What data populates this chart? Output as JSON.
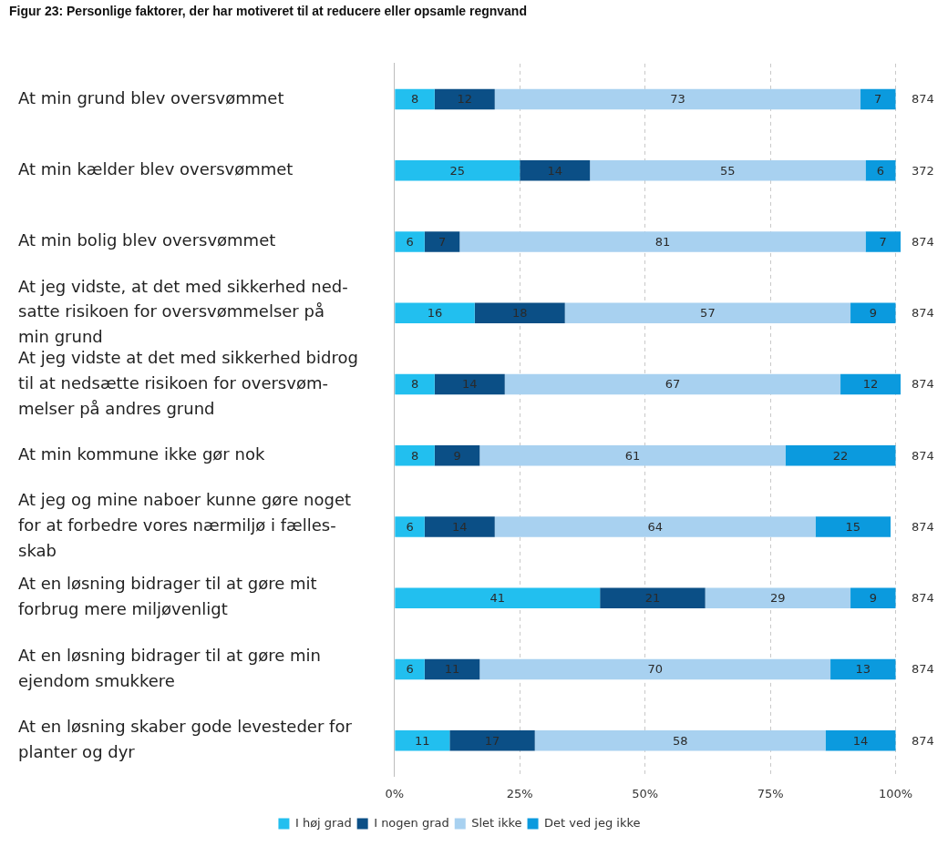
{
  "chart_data": {
    "type": "bar",
    "orientation": "horizontal",
    "stacked": true,
    "title": "Figur 23: Personlige faktorer, der har motiveret til at reducere eller opsamle regnvand",
    "categories": [
      "At min grund blev oversvømmet",
      "At min kælder blev oversvømmet",
      "At min bolig blev oversvømmet",
      "At jeg vidste, at det med sikkerhed ned-\nsatte risikoen for oversvømmelser på\nmin grund",
      "At jeg vidste at det med sikkerhed bidrog\ntil at nedsætte risikoen for oversvøm-\nmelser på andres grund",
      "At min kommune ikke gør nok",
      "At jeg og mine naboer kunne gøre noget\nfor at forbedre vores nærmiljø i fælles-\nskab",
      "At en løsning bidrager til at gøre mit\nforbrug mere miljøvenligt",
      "At en løsning bidrager til at gøre min\nejendom smukkere",
      "At en løsning skaber gode levesteder for\nplanter og dyr"
    ],
    "series": [
      {
        "name": "I høj grad",
        "color": "#22bfef",
        "values": [
          8,
          25,
          6,
          16,
          8,
          8,
          6,
          41,
          6,
          11
        ]
      },
      {
        "name": "I nogen grad",
        "color": "#0b4f86",
        "values": [
          12,
          14,
          7,
          18,
          14,
          9,
          14,
          21,
          11,
          17
        ]
      },
      {
        "name": "Slet ikke",
        "color": "#a8d1f0",
        "values": [
          73,
          55,
          81,
          57,
          67,
          61,
          64,
          29,
          70,
          58
        ]
      },
      {
        "name": "Det ved jeg ikke",
        "color": "#0b9ade",
        "values": [
          7,
          6,
          7,
          9,
          12,
          22,
          15,
          9,
          13,
          14
        ]
      }
    ],
    "xlim": [
      0,
      101
    ],
    "xticks": [
      {
        "value": 0,
        "label": "0%"
      },
      {
        "value": 25,
        "label": "25%"
      },
      {
        "value": 50,
        "label": "50%"
      },
      {
        "value": 75,
        "label": "75%"
      },
      {
        "value": 100,
        "label": "100%"
      }
    ],
    "annotations": [
      "874",
      "372",
      "874",
      "874",
      "874",
      "874",
      "874",
      "874",
      "874",
      "874"
    ],
    "data_labels": true,
    "grid": "x",
    "legend": "bottom"
  }
}
